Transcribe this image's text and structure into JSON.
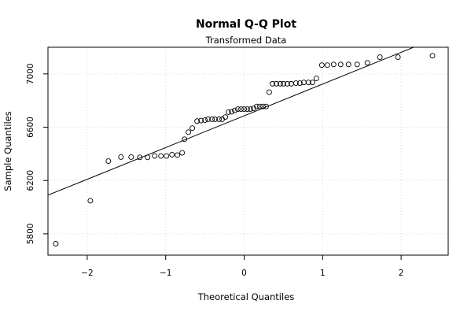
{
  "chart_data": {
    "type": "scatter",
    "title": "Normal Q-Q Plot",
    "subtitle": "Transformed Data",
    "xlabel": "Theoretical Quantiles",
    "ylabel": "Sample Quantiles",
    "xlim": [
      -2.5,
      2.6
    ],
    "ylim": [
      5640,
      7200
    ],
    "xticks": [
      -2,
      -1,
      0,
      1,
      2
    ],
    "xtick_labels": [
      "−2",
      "−1",
      "0",
      "1",
      "2"
    ],
    "yticks": [
      5800,
      6200,
      6600,
      7000
    ],
    "ytick_labels": [
      "5800",
      "6200",
      "6600",
      "7000"
    ],
    "grid": true,
    "reference_line": {
      "x1": -2.5,
      "y1": 6090,
      "x2": 2.6,
      "y2": 7305
    },
    "points": [
      {
        "x": -2.4,
        "y": 5726
      },
      {
        "x": -1.96,
        "y": 6048
      },
      {
        "x": -1.73,
        "y": 6346
      },
      {
        "x": -1.57,
        "y": 6376
      },
      {
        "x": -1.44,
        "y": 6376
      },
      {
        "x": -1.33,
        "y": 6374
      },
      {
        "x": -1.23,
        "y": 6374
      },
      {
        "x": -1.14,
        "y": 6384
      },
      {
        "x": -1.06,
        "y": 6384
      },
      {
        "x": -0.99,
        "y": 6384
      },
      {
        "x": -0.92,
        "y": 6394
      },
      {
        "x": -0.85,
        "y": 6391
      },
      {
        "x": -0.79,
        "y": 6408
      },
      {
        "x": -0.76,
        "y": 6510
      },
      {
        "x": -0.71,
        "y": 6563
      },
      {
        "x": -0.66,
        "y": 6593
      },
      {
        "x": -0.6,
        "y": 6646
      },
      {
        "x": -0.55,
        "y": 6650
      },
      {
        "x": -0.5,
        "y": 6653
      },
      {
        "x": -0.46,
        "y": 6660
      },
      {
        "x": -0.41,
        "y": 6660
      },
      {
        "x": -0.37,
        "y": 6660
      },
      {
        "x": -0.32,
        "y": 6660
      },
      {
        "x": -0.28,
        "y": 6660
      },
      {
        "x": -0.24,
        "y": 6676
      },
      {
        "x": -0.2,
        "y": 6713
      },
      {
        "x": -0.16,
        "y": 6716
      },
      {
        "x": -0.12,
        "y": 6726
      },
      {
        "x": -0.08,
        "y": 6736
      },
      {
        "x": -0.04,
        "y": 6736
      },
      {
        "x": 0.0,
        "y": 6736
      },
      {
        "x": 0.04,
        "y": 6736
      },
      {
        "x": 0.08,
        "y": 6736
      },
      {
        "x": 0.12,
        "y": 6741
      },
      {
        "x": 0.16,
        "y": 6756
      },
      {
        "x": 0.2,
        "y": 6756
      },
      {
        "x": 0.24,
        "y": 6756
      },
      {
        "x": 0.28,
        "y": 6756
      },
      {
        "x": 0.32,
        "y": 6863
      },
      {
        "x": 0.36,
        "y": 6926
      },
      {
        "x": 0.41,
        "y": 6926
      },
      {
        "x": 0.46,
        "y": 6926
      },
      {
        "x": 0.5,
        "y": 6926
      },
      {
        "x": 0.55,
        "y": 6926
      },
      {
        "x": 0.6,
        "y": 6926
      },
      {
        "x": 0.66,
        "y": 6931
      },
      {
        "x": 0.71,
        "y": 6931
      },
      {
        "x": 0.76,
        "y": 6936
      },
      {
        "x": 0.82,
        "y": 6936
      },
      {
        "x": 0.87,
        "y": 6936
      },
      {
        "x": 0.92,
        "y": 6966
      },
      {
        "x": 0.99,
        "y": 7066
      },
      {
        "x": 1.06,
        "y": 7066
      },
      {
        "x": 1.14,
        "y": 7071
      },
      {
        "x": 1.23,
        "y": 7071
      },
      {
        "x": 1.33,
        "y": 7071
      },
      {
        "x": 1.44,
        "y": 7071
      },
      {
        "x": 1.57,
        "y": 7083
      },
      {
        "x": 1.73,
        "y": 7126
      },
      {
        "x": 1.96,
        "y": 7126
      },
      {
        "x": 2.4,
        "y": 7136
      }
    ]
  }
}
